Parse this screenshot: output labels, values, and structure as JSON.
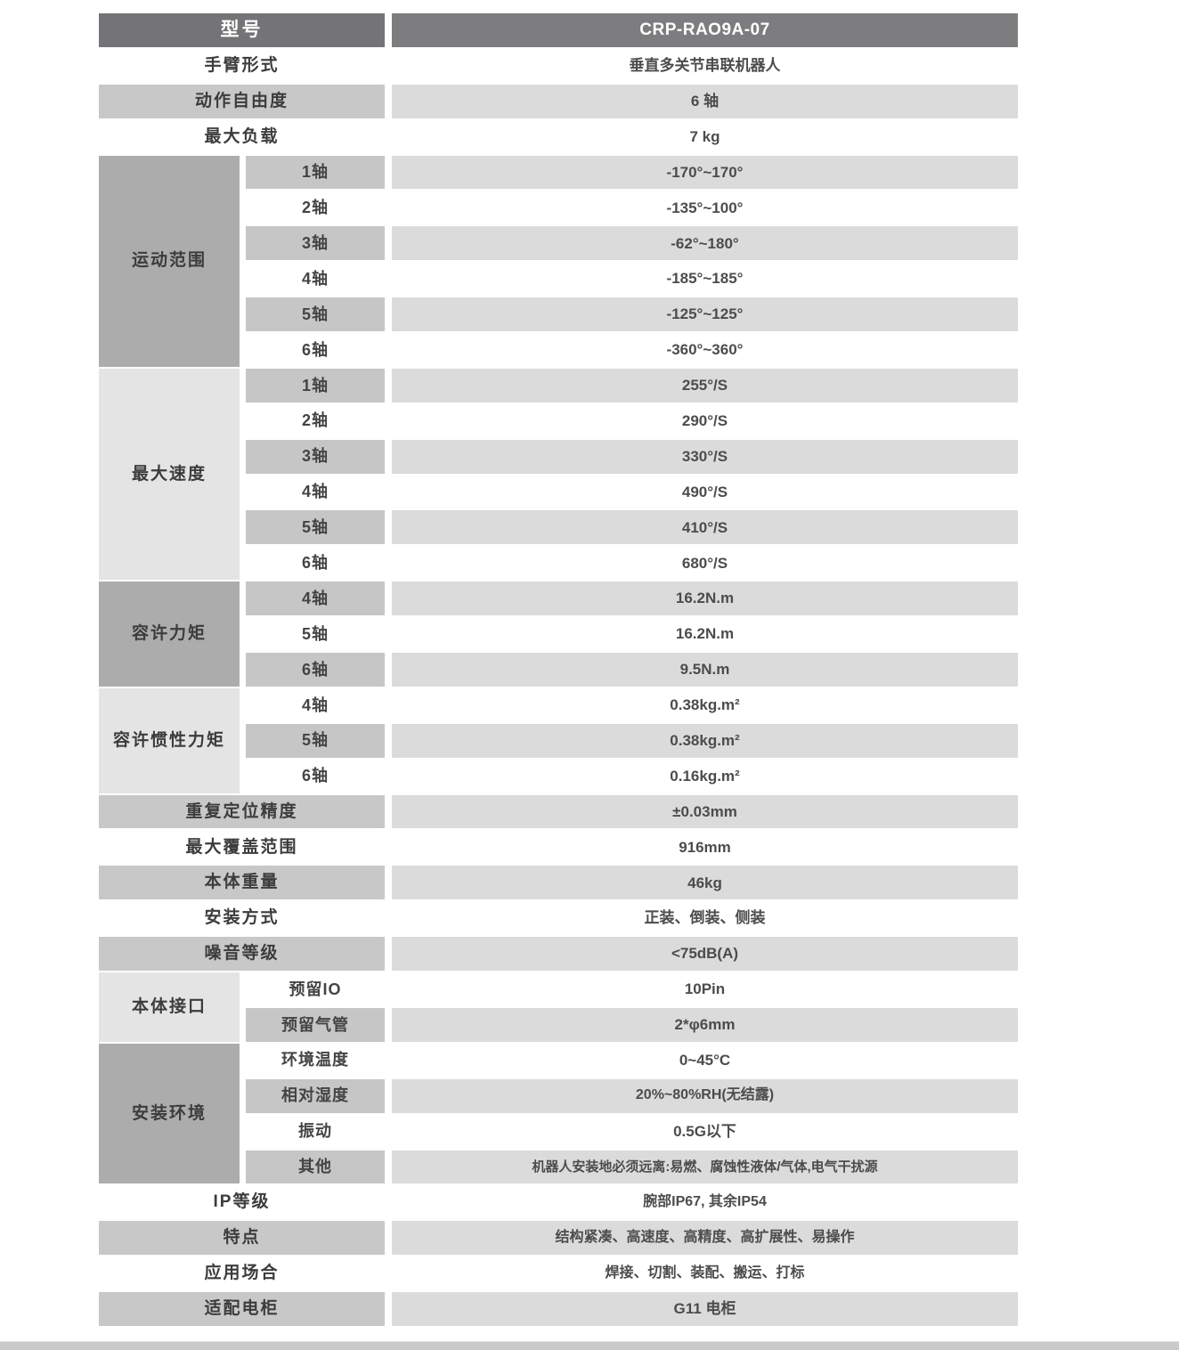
{
  "colors": {
    "background": "#ffffff",
    "header_bg": "#747477",
    "header_value_bg": "#7d7d7f",
    "header_text": "#ffffff",
    "group_dark": "#acacac",
    "group_light": "#e4e4e5",
    "sub_shaded": "#c6c6c6",
    "label_shaded": "#c8c8c8",
    "value_shaded": "#dbdbdb",
    "label_text": "#3c3c3e",
    "value_text": "#4c4c4e",
    "footer_bar": "#cacaca"
  },
  "table": {
    "header": {
      "label": "型号",
      "value": "CRP-RAO9A-07"
    },
    "sections": [
      {
        "type": "single",
        "label": "手臂形式",
        "value": "垂直多关节串联机器人",
        "shaded": false
      },
      {
        "type": "single",
        "label": "动作自由度",
        "value": "6 轴",
        "shaded": true
      },
      {
        "type": "single",
        "label": "最大负载",
        "value": "7 kg",
        "shaded": false
      },
      {
        "type": "group",
        "label": "运动范围",
        "shade": "dark",
        "rows": [
          {
            "sub": "1轴",
            "value": "-170°~170°",
            "shaded": true
          },
          {
            "sub": "2轴",
            "value": "-135°~100°",
            "shaded": false
          },
          {
            "sub": "3轴",
            "value": "-62°~180°",
            "shaded": true
          },
          {
            "sub": "4轴",
            "value": "-185°~185°",
            "shaded": false
          },
          {
            "sub": "5轴",
            "value": "-125°~125°",
            "shaded": true
          },
          {
            "sub": "6轴",
            "value": "-360°~360°",
            "shaded": false
          }
        ]
      },
      {
        "type": "group",
        "label": "最大速度",
        "shade": "light",
        "rows": [
          {
            "sub": "1轴",
            "value": "255°/S",
            "shaded": true
          },
          {
            "sub": "2轴",
            "value": "290°/S",
            "shaded": false
          },
          {
            "sub": "3轴",
            "value": "330°/S",
            "shaded": true
          },
          {
            "sub": "4轴",
            "value": "490°/S",
            "shaded": false
          },
          {
            "sub": "5轴",
            "value": "410°/S",
            "shaded": true
          },
          {
            "sub": "6轴",
            "value": "680°/S",
            "shaded": false
          }
        ]
      },
      {
        "type": "group",
        "label": "容许力矩",
        "shade": "dark",
        "rows": [
          {
            "sub": "4轴",
            "value": "16.2N.m",
            "shaded": true
          },
          {
            "sub": "5轴",
            "value": "16.2N.m",
            "shaded": false
          },
          {
            "sub": "6轴",
            "value": "9.5N.m",
            "shaded": true
          }
        ]
      },
      {
        "type": "group",
        "label": "容许惯性力矩",
        "shade": "light",
        "rows": [
          {
            "sub": "4轴",
            "value": "0.38kg.m²",
            "shaded": false
          },
          {
            "sub": "5轴",
            "value": "0.38kg.m²",
            "shaded": true
          },
          {
            "sub": "6轴",
            "value": "0.16kg.m²",
            "shaded": false
          }
        ]
      },
      {
        "type": "single",
        "label": "重复定位精度",
        "value": "±0.03mm",
        "shaded": true
      },
      {
        "type": "single",
        "label": "最大覆盖范围",
        "value": "916mm",
        "shaded": false
      },
      {
        "type": "single",
        "label": "本体重量",
        "value": "46kg",
        "shaded": true
      },
      {
        "type": "single",
        "label": "安装方式",
        "value": "正装、倒装、侧装",
        "shaded": false
      },
      {
        "type": "single",
        "label": "噪音等级",
        "value": "<75dB(A)",
        "shaded": true
      },
      {
        "type": "group",
        "label": "本体接口",
        "shade": "light",
        "rows": [
          {
            "sub": "预留IO",
            "value": "10Pin",
            "shaded": false
          },
          {
            "sub": "预留气管",
            "value": "2*φ6mm",
            "shaded": true
          }
        ]
      },
      {
        "type": "group",
        "label": "安装环境",
        "shade": "dark",
        "rows": [
          {
            "sub": "环境温度",
            "value": "0~45°C",
            "shaded": false
          },
          {
            "sub": "相对湿度",
            "value": "20%~80%RH(无结露)",
            "shaded": true
          },
          {
            "sub": "振动",
            "value": "0.5G以下",
            "shaded": false
          },
          {
            "sub": "其他",
            "value": "机器人安装地必须远离:易燃、腐蚀性液体/气体,电气干扰源",
            "shaded": true
          }
        ]
      },
      {
        "type": "single",
        "label": "IP等级",
        "value": "腕部IP67, 其余IP54",
        "shaded": false
      },
      {
        "type": "single",
        "label": "特点",
        "value": "结构紧凑、高速度、高精度、高扩展性、易操作",
        "shaded": true
      },
      {
        "type": "single",
        "label": "应用场合",
        "value": "焊接、切割、装配、搬运、打标",
        "shaded": false
      },
      {
        "type": "single",
        "label": "适配电柜",
        "value": "G11 电柜",
        "shaded": true
      }
    ]
  },
  "footer": {
    "present": true
  }
}
